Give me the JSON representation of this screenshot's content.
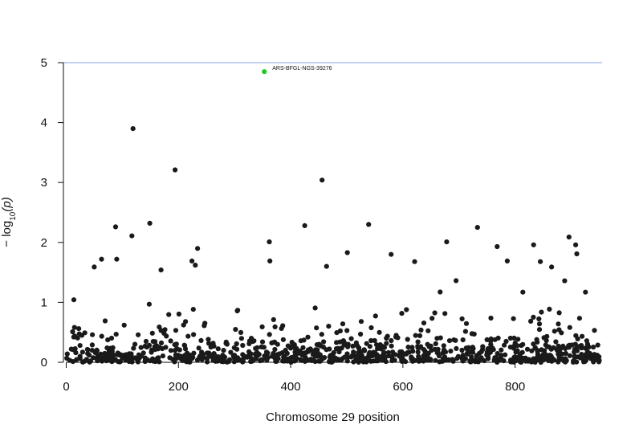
{
  "chart_data": {
    "type": "scatter",
    "title": "",
    "xlabel": "Chromosome 29 position",
    "ylabel_prefix": "− log",
    "ylabel_sub": "10",
    "ylabel_suffix": "(p)",
    "xlim": [
      -5,
      955
    ],
    "ylim": [
      0,
      5
    ],
    "x_ticks": [
      0,
      200,
      400,
      600,
      800
    ],
    "y_ticks": [
      0,
      1,
      2,
      3,
      4,
      5
    ],
    "threshold": 5,
    "threshold_color": "#9fb4f0",
    "point_color": "#1a1a1a",
    "highlight_color": "#22c822",
    "n_snps": 950,
    "notable_points": [
      {
        "x": 353,
        "y": 4.85,
        "label": "ARS-BFGL-NGS-39276",
        "highlight": true
      },
      {
        "x": 119,
        "y": 3.9
      },
      {
        "x": 194,
        "y": 3.21
      },
      {
        "x": 456,
        "y": 3.04
      },
      {
        "x": 149,
        "y": 2.32
      },
      {
        "x": 539,
        "y": 2.3
      },
      {
        "x": 425,
        "y": 2.28
      },
      {
        "x": 88,
        "y": 2.26
      },
      {
        "x": 733,
        "y": 2.25
      },
      {
        "x": 117,
        "y": 2.11
      },
      {
        "x": 896,
        "y": 2.09
      },
      {
        "x": 678,
        "y": 2.01
      },
      {
        "x": 362,
        "y": 2.01
      },
      {
        "x": 833,
        "y": 1.96
      },
      {
        "x": 908,
        "y": 1.96
      },
      {
        "x": 768,
        "y": 1.93
      },
      {
        "x": 234,
        "y": 1.9
      },
      {
        "x": 501,
        "y": 1.83
      },
      {
        "x": 910,
        "y": 1.81
      },
      {
        "x": 579,
        "y": 1.8
      },
      {
        "x": 63,
        "y": 1.72
      },
      {
        "x": 90,
        "y": 1.72
      },
      {
        "x": 224,
        "y": 1.69
      },
      {
        "x": 363,
        "y": 1.69
      },
      {
        "x": 786,
        "y": 1.69
      },
      {
        "x": 621,
        "y": 1.68
      },
      {
        "x": 845,
        "y": 1.68
      },
      {
        "x": 50,
        "y": 1.59
      },
      {
        "x": 230,
        "y": 1.62
      },
      {
        "x": 464,
        "y": 1.6
      },
      {
        "x": 865,
        "y": 1.59
      },
      {
        "x": 169,
        "y": 1.54
      }
    ]
  }
}
